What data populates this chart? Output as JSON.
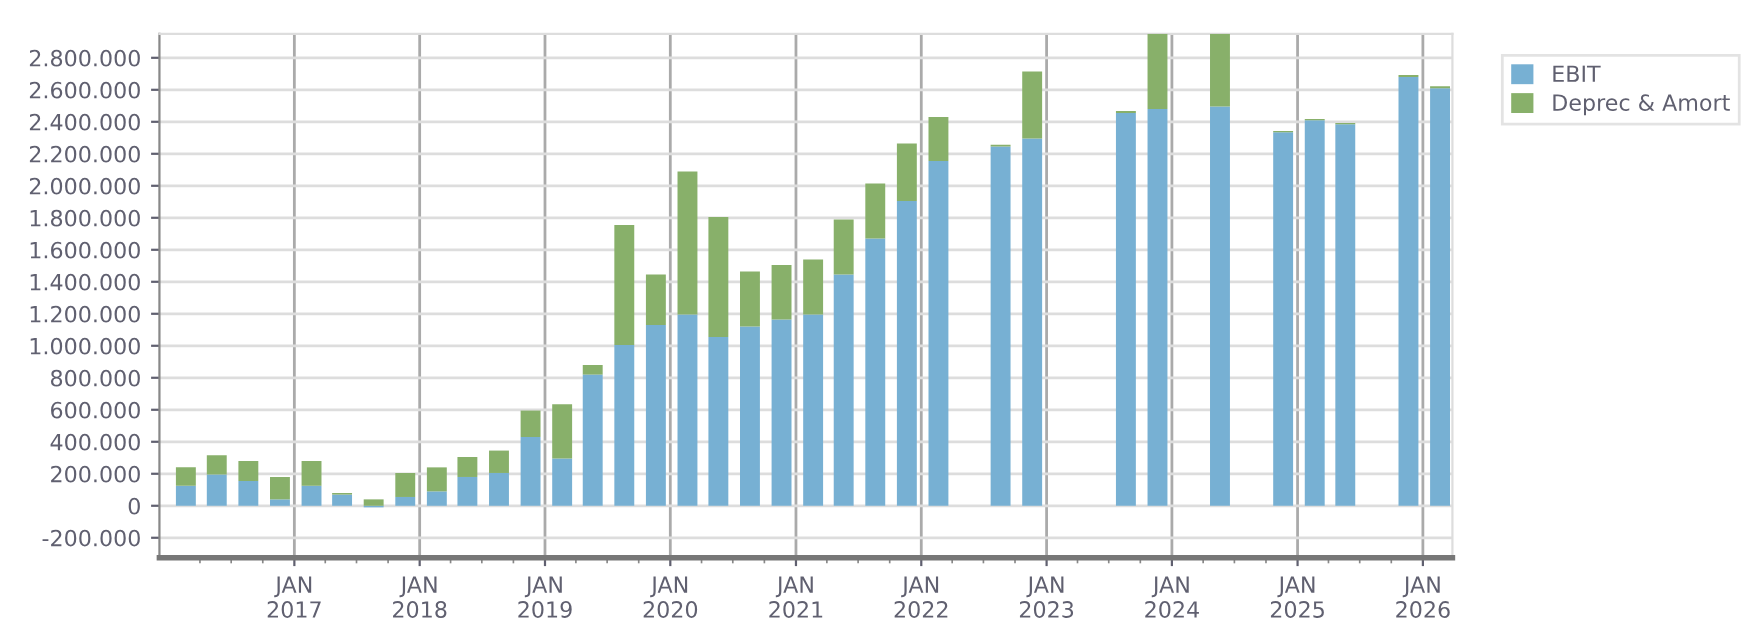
{
  "chart_data": {
    "type": "bar",
    "stacked": true,
    "x": [
      "2016-02-20",
      "2016-05-20",
      "2016-08-20",
      "2016-11-20",
      "2017-02-20",
      "2017-05-20",
      "2017-08-20",
      "2017-11-20",
      "2018-02-20",
      "2018-05-20",
      "2018-08-20",
      "2018-11-20",
      "2019-02-20",
      "2019-05-20",
      "2019-08-20",
      "2019-11-20",
      "2020-02-20",
      "2020-05-20",
      "2020-08-20",
      "2020-11-20",
      "2021-02-20",
      "2021-05-20",
      "2021-08-20",
      "2021-11-20",
      "2022-02-20",
      "2022-05-20",
      "2022-08-20",
      "2022-11-20",
      "2023-02-20",
      "2023-05-20",
      "2023-08-20",
      "2023-11-20",
      "2024-02-20",
      "2024-05-20",
      "2024-08-20",
      "2024-11-20",
      "2025-02-20",
      "2025-05-20",
      "2025-08-20",
      "2025-11-20",
      "2026-02-20"
    ],
    "series": [
      {
        "name": "EBIT",
        "color": "#77b0d3",
        "values": [
          125000,
          195000,
          155000,
          40000,
          125000,
          70000,
          -10000,
          55000,
          90000,
          180000,
          205000,
          430000,
          295000,
          820000,
          1005000,
          1130000,
          1195000,
          1055000,
          1120000,
          1165000,
          1195000,
          1445000,
          1670000,
          1905000,
          2155000,
          null,
          2245000,
          2295000,
          null,
          null,
          2455000,
          2480000,
          null,
          2495000,
          null,
          2335000,
          2410000,
          2385000,
          null,
          2680000,
          2610000
        ]
      },
      {
        "name": "Deprec & Amort",
        "color": "#88b06a",
        "values": [
          115000,
          120000,
          125000,
          140000,
          155000,
          10000,
          40000,
          150000,
          150000,
          125000,
          140000,
          165000,
          340000,
          60000,
          750000,
          315000,
          895000,
          750000,
          345000,
          340000,
          345000,
          345000,
          345000,
          360000,
          275000,
          null,
          12000,
          420000,
          null,
          null,
          12000,
          470000,
          null,
          455000,
          null,
          8000,
          8000,
          8000,
          null,
          12000,
          12000
        ]
      }
    ],
    "ylim": [
      -325000,
      2950000
    ],
    "yticks": [
      {
        "value": -200000,
        "label": "-200.000"
      },
      {
        "value": 0,
        "label": "0"
      },
      {
        "value": 200000,
        "label": "200.000"
      },
      {
        "value": 400000,
        "label": "400.000"
      },
      {
        "value": 600000,
        "label": "600.000"
      },
      {
        "value": 800000,
        "label": "800.000"
      },
      {
        "value": 1000000,
        "label": "1.000.000"
      },
      {
        "value": 1200000,
        "label": "1.200.000"
      },
      {
        "value": 1400000,
        "label": "1.400.000"
      },
      {
        "value": 1600000,
        "label": "1.600.000"
      },
      {
        "value": 1800000,
        "label": "1.800.000"
      },
      {
        "value": 2000000,
        "label": "2.000.000"
      },
      {
        "value": 2200000,
        "label": "2.200.000"
      },
      {
        "value": 2400000,
        "label": "2.400.000"
      },
      {
        "value": 2600000,
        "label": "2.600.000"
      },
      {
        "value": 2800000,
        "label": "2.800.000"
      }
    ],
    "xlim": [
      "2015-12-05",
      "2026-03-28"
    ],
    "xticks": [
      {
        "value": "2017-01-01",
        "label": "JAN\n2017"
      },
      {
        "value": "2018-01-01",
        "label": "JAN\n2018"
      },
      {
        "value": "2019-01-01",
        "label": "JAN\n2019"
      },
      {
        "value": "2020-01-01",
        "label": "JAN\n2020"
      },
      {
        "value": "2021-01-01",
        "label": "JAN\n2021"
      },
      {
        "value": "2022-01-01",
        "label": "JAN\n2022"
      },
      {
        "value": "2023-01-01",
        "label": "JAN\n2023"
      },
      {
        "value": "2024-01-01",
        "label": "JAN\n2024"
      },
      {
        "value": "2025-01-01",
        "label": "JAN\n2025"
      },
      {
        "value": "2026-01-01",
        "label": "JAN\n2026"
      }
    ],
    "grid": true,
    "legend": "top right"
  }
}
